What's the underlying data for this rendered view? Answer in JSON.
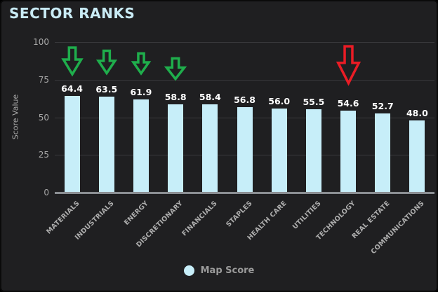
{
  "title": "SECTOR RANKS",
  "legend": {
    "label": "Map Score",
    "marker_color": "#c7eef9"
  },
  "chart_data": {
    "type": "bar",
    "title": "SECTOR RANKS",
    "xlabel": "",
    "ylabel": "Score Value",
    "ylim": [
      0,
      100
    ],
    "yticks": [
      0,
      25,
      50,
      75,
      100
    ],
    "grid": true,
    "legend_position": "bottom",
    "series_name": "Map Score",
    "bar_color": "#c7eef9",
    "value_label_color": "#ffffff",
    "categories": [
      "MATERIALS",
      "INDUSTRIALS",
      "ENERGY",
      "DISCRETIONARY",
      "FINANCIALS",
      "STAPLES",
      "HEALTH CARE",
      "UTILITIES",
      "TECHNOLOGY",
      "REAL ESTATE",
      "COMMUNICATIONS"
    ],
    "values": [
      64.4,
      63.5,
      61.9,
      58.8,
      58.4,
      56.8,
      56.0,
      55.5,
      54.6,
      52.7,
      48.0
    ],
    "annotations": [
      {
        "category": "MATERIALS",
        "type": "down-arrow",
        "color": "#1fae4c",
        "width": 30,
        "height": 44,
        "top": 63
      },
      {
        "category": "INDUSTRIALS",
        "type": "down-arrow",
        "color": "#1fae4c",
        "width": 28,
        "height": 37,
        "top": 68
      },
      {
        "category": "ENERGY",
        "type": "down-arrow",
        "color": "#1fae4c",
        "width": 26,
        "height": 33,
        "top": 72
      },
      {
        "category": "DISCRETIONARY",
        "type": "down-arrow",
        "color": "#1fae4c",
        "width": 30,
        "height": 34,
        "top": 79
      },
      {
        "category": "TECHNOLOGY",
        "type": "down-arrow",
        "color": "#ea1c25",
        "width": 35,
        "height": 61,
        "top": 60
      }
    ]
  }
}
